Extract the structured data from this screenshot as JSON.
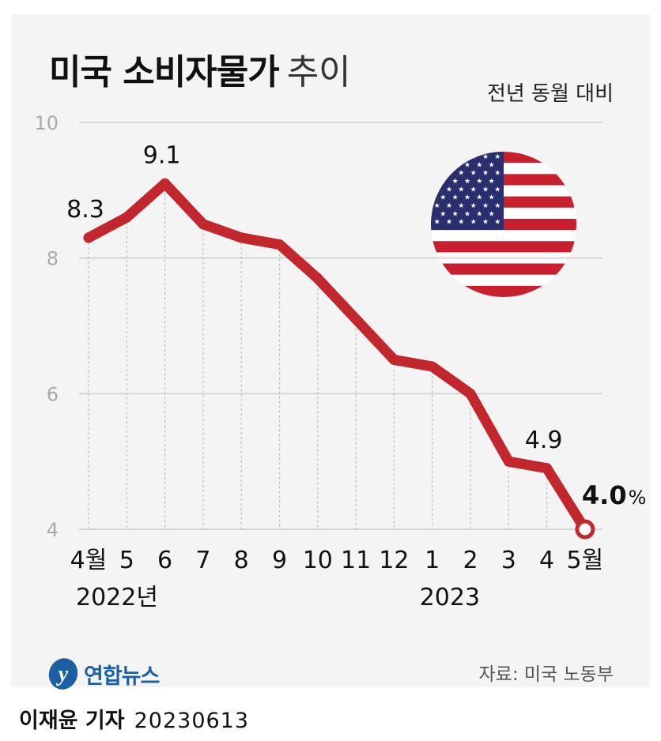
{
  "title": {
    "bold": "미국 소비자물가",
    "light": "추이"
  },
  "subtitle": "전년 동월 대비",
  "source": "자료: 미국 노동부",
  "logo": {
    "text": "연합뉴스",
    "icon": "yonhap-logo-icon"
  },
  "byline": {
    "name": "이재윤 기자",
    "date": "20230613"
  },
  "colors": {
    "line": "#c1272d",
    "panel": "#f4f4f4",
    "grid": "#cccccc",
    "text": "#111111",
    "logo": "#1d5fa3"
  },
  "chart_data": {
    "type": "line",
    "categories": [
      "4월",
      "5",
      "6",
      "7",
      "8",
      "9",
      "10",
      "11",
      "12",
      "1",
      "2",
      "3",
      "4",
      "5월"
    ],
    "values": [
      8.3,
      8.6,
      9.1,
      8.5,
      8.3,
      8.2,
      7.7,
      7.1,
      6.5,
      6.4,
      6.0,
      5.0,
      4.9,
      4.0
    ],
    "year_labels": [
      {
        "index": 0,
        "text": "2022년"
      },
      {
        "index": 9,
        "text": "2023"
      }
    ],
    "data_labels": [
      {
        "index": 0,
        "text": "8.3"
      },
      {
        "index": 2,
        "text": "9.1"
      },
      {
        "index": 12,
        "text": "4.9"
      }
    ],
    "last_label": {
      "index": 13,
      "value": "4.0",
      "unit": "%"
    },
    "yticks": [
      4,
      6,
      8,
      10
    ],
    "ylim": [
      4,
      10
    ],
    "grid": true
  }
}
